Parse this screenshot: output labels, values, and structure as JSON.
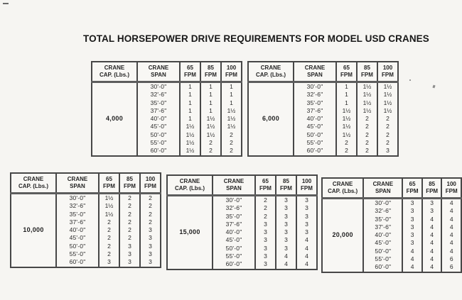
{
  "title": "TOTAL HORSEPOWER DRIVE REQUIREMENTS FOR MODEL USD CRANES",
  "headers": {
    "cap_lines": [
      "CRANE",
      "CAP. (Lbs.)"
    ],
    "span_lines": [
      "CRANE",
      "SPAN"
    ],
    "speeds": [
      {
        "lines": [
          "65",
          "FPM"
        ]
      },
      {
        "lines": [
          "85",
          "FPM"
        ]
      },
      {
        "lines": [
          "100",
          "FPM"
        ]
      }
    ]
  },
  "spans": [
    "30'-0\"",
    "32'-6\"",
    "35'-0\"",
    "37'-6\"",
    "40'-0\"",
    "45'-0\"",
    "50'-0\"",
    "55'-0\"",
    "60'-0\""
  ],
  "tables": [
    {
      "capacity": "4,000",
      "rows": [
        [
          "1",
          "1",
          "1"
        ],
        [
          "1",
          "1",
          "1"
        ],
        [
          "1",
          "1",
          "1"
        ],
        [
          "1",
          "1",
          "1½"
        ],
        [
          "1",
          "1½",
          "1½"
        ],
        [
          "1½",
          "1½",
          "1½"
        ],
        [
          "1½",
          "1½",
          "2"
        ],
        [
          "1½",
          "2",
          "2"
        ],
        [
          "1½",
          "2",
          "2"
        ]
      ]
    },
    {
      "capacity": "6,000",
      "rows": [
        [
          "1",
          "1½",
          "1½"
        ],
        [
          "1",
          "1½",
          "1½"
        ],
        [
          "1",
          "1½",
          "1½"
        ],
        [
          "1½",
          "1½",
          "1½"
        ],
        [
          "1½",
          "2",
          "2"
        ],
        [
          "1½",
          "2",
          "2"
        ],
        [
          "1½",
          "2",
          "2"
        ],
        [
          "2",
          "2",
          "2"
        ],
        [
          "2",
          "2",
          "3"
        ]
      ]
    },
    {
      "capacity": "10,000",
      "rows": [
        [
          "1½",
          "2",
          "2"
        ],
        [
          "1½",
          "2",
          "2"
        ],
        [
          "1½",
          "2",
          "2"
        ],
        [
          "2",
          "2",
          "2"
        ],
        [
          "2",
          "2",
          "3"
        ],
        [
          "2",
          "2",
          "3"
        ],
        [
          "2",
          "3",
          "3"
        ],
        [
          "2",
          "3",
          "3"
        ],
        [
          "3",
          "3",
          "3"
        ]
      ]
    },
    {
      "capacity": "15,000",
      "rows": [
        [
          "2",
          "3",
          "3"
        ],
        [
          "2",
          "3",
          "3"
        ],
        [
          "2",
          "3",
          "3"
        ],
        [
          "3",
          "3",
          "3"
        ],
        [
          "3",
          "3",
          "3"
        ],
        [
          "3",
          "3",
          "4"
        ],
        [
          "3",
          "3",
          "4"
        ],
        [
          "3",
          "4",
          "4"
        ],
        [
          "3",
          "4",
          "4"
        ]
      ]
    },
    {
      "capacity": "20,000",
      "rows": [
        [
          "3",
          "3",
          "4"
        ],
        [
          "3",
          "3",
          "4"
        ],
        [
          "3",
          "4",
          "4"
        ],
        [
          "3",
          "4",
          "4"
        ],
        [
          "3",
          "4",
          "4"
        ],
        [
          "3",
          "4",
          "4"
        ],
        [
          "4",
          "4",
          "4"
        ],
        [
          "4",
          "4",
          "6"
        ],
        [
          "4",
          "4",
          "6"
        ]
      ]
    }
  ]
}
